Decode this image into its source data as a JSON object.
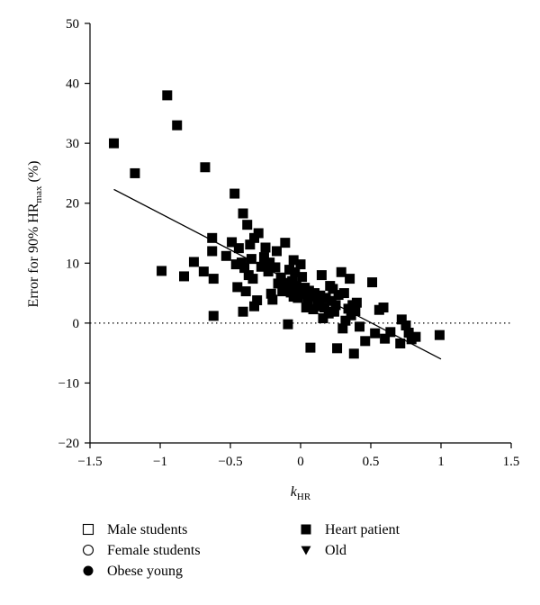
{
  "chart_data": {
    "type": "scatter",
    "xlabel": "k",
    "xlabel_sub": "HR",
    "ylabel_prefix": "Error for 90% HR",
    "ylabel_sub": "max",
    "ylabel_suffix": " (%)",
    "xlim": [
      -1.5,
      1.5
    ],
    "ylim": [
      -20,
      50
    ],
    "x_ticks": [
      -1.5,
      -1,
      -0.5,
      0,
      0.5,
      1,
      1.5
    ],
    "x_tick_labels": [
      "−1.5",
      "−1",
      "−0.5",
      "0",
      "0.5",
      "1",
      "1.5"
    ],
    "y_ticks": [
      -20,
      -10,
      0,
      10,
      20,
      30,
      40,
      50
    ],
    "y_tick_labels": [
      "−20",
      "−10",
      "0",
      "10",
      "20",
      "30",
      "40",
      "50"
    ],
    "grid": false,
    "reference_line": {
      "y": 0,
      "style": "dotted"
    },
    "trend_line": {
      "x": [
        -1.33,
        1.0
      ],
      "y": [
        22.3,
        -6.0
      ]
    },
    "legend": {
      "placement": "bottom",
      "entries": [
        {
          "label": "Male students",
          "marker": "square-open"
        },
        {
          "label": "Female students",
          "marker": "circle-open"
        },
        {
          "label": "Obese young",
          "marker": "circle-filled"
        },
        {
          "label": "Heart patient",
          "marker": "square-filled"
        },
        {
          "label": "Old",
          "marker": "triangle-down-filled"
        }
      ]
    },
    "series": [
      {
        "name": "Heart patient",
        "marker": "square-filled",
        "points": [
          [
            -1.33,
            30
          ],
          [
            -1.18,
            25
          ],
          [
            -0.95,
            38
          ],
          [
            -0.88,
            33
          ],
          [
            -0.68,
            26
          ],
          [
            -0.99,
            8.7
          ],
          [
            -0.83,
            7.8
          ],
          [
            -0.76,
            10.2
          ],
          [
            -0.69,
            8.6
          ],
          [
            -0.63,
            14.2
          ],
          [
            -0.63,
            12.0
          ],
          [
            -0.62,
            7.4
          ],
          [
            -0.62,
            1.2
          ],
          [
            -0.53,
            11.2
          ],
          [
            -0.49,
            13.5
          ],
          [
            -0.47,
            21.6
          ],
          [
            -0.46,
            9.8
          ],
          [
            -0.45,
            6.0
          ],
          [
            -0.44,
            12.5
          ],
          [
            -0.42,
            10.1
          ],
          [
            -0.41,
            18.3
          ],
          [
            -0.41,
            1.9
          ],
          [
            -0.4,
            9.2
          ],
          [
            -0.39,
            5.3
          ],
          [
            -0.38,
            16.4
          ],
          [
            -0.37,
            8.0
          ],
          [
            -0.36,
            13.1
          ],
          [
            -0.35,
            10.7
          ],
          [
            -0.34,
            7.4
          ],
          [
            -0.33,
            14.2
          ],
          [
            -0.33,
            2.8
          ],
          [
            -0.31,
            3.8
          ],
          [
            -0.3,
            15.0
          ],
          [
            -0.28,
            9.4
          ],
          [
            -0.26,
            11.0
          ],
          [
            -0.25,
            12.6
          ],
          [
            -0.23,
            8.6
          ],
          [
            -0.22,
            10.1
          ],
          [
            -0.21,
            4.9
          ],
          [
            -0.2,
            3.9
          ],
          [
            -0.18,
            9.3
          ],
          [
            -0.17,
            12.0
          ],
          [
            -0.16,
            6.6
          ],
          [
            -0.14,
            7.6
          ],
          [
            -0.13,
            5.3
          ],
          [
            -0.11,
            13.4
          ],
          [
            -0.1,
            6.7
          ],
          [
            -0.09,
            5.6
          ],
          [
            -0.09,
            -0.2
          ],
          [
            -0.08,
            8.9
          ],
          [
            -0.07,
            5.1
          ],
          [
            -0.06,
            7.0
          ],
          [
            -0.05,
            10.5
          ],
          [
            -0.05,
            4.4
          ],
          [
            -0.04,
            8.5
          ],
          [
            -0.03,
            6.2
          ],
          [
            -0.02,
            4.2
          ],
          [
            -0.01,
            5.0
          ],
          [
            0.0,
            9.8
          ],
          [
            0.01,
            7.7
          ],
          [
            0.02,
            4.8
          ],
          [
            0.03,
            5.9
          ],
          [
            0.04,
            2.6
          ],
          [
            0.05,
            3.6
          ],
          [
            0.06,
            5.4
          ],
          [
            0.07,
            -4.1
          ],
          [
            0.08,
            4.4
          ],
          [
            0.09,
            2.3
          ],
          [
            0.1,
            5.0
          ],
          [
            0.12,
            3.8
          ],
          [
            0.13,
            2.8
          ],
          [
            0.14,
            4.6
          ],
          [
            0.15,
            8.0
          ],
          [
            0.16,
            0.8
          ],
          [
            0.17,
            2.6
          ],
          [
            0.18,
            4.2
          ],
          [
            0.2,
            1.6
          ],
          [
            0.21,
            6.2
          ],
          [
            0.22,
            3.7
          ],
          [
            0.23,
            5.7
          ],
          [
            0.24,
            1.9
          ],
          [
            0.25,
            3.0
          ],
          [
            0.26,
            -4.2
          ],
          [
            0.27,
            4.7
          ],
          [
            0.29,
            8.5
          ],
          [
            0.3,
            -0.9
          ],
          [
            0.31,
            5.0
          ],
          [
            0.32,
            0.4
          ],
          [
            0.34,
            2.4
          ],
          [
            0.35,
            7.4
          ],
          [
            0.36,
            1.3
          ],
          [
            0.37,
            3.0
          ],
          [
            0.38,
            -5.1
          ],
          [
            0.39,
            2.0
          ],
          [
            0.4,
            3.4
          ],
          [
            0.42,
            -0.6
          ],
          [
            0.46,
            -3.0
          ],
          [
            0.51,
            6.8
          ],
          [
            0.53,
            -1.7
          ],
          [
            0.56,
            2.2
          ],
          [
            0.59,
            2.6
          ],
          [
            0.6,
            -2.6
          ],
          [
            0.64,
            -1.5
          ],
          [
            0.71,
            -3.4
          ],
          [
            0.72,
            0.6
          ],
          [
            0.75,
            -0.4
          ],
          [
            0.77,
            -1.6
          ],
          [
            0.79,
            -2.7
          ],
          [
            0.82,
            -2.3
          ],
          [
            0.99,
            -2.0
          ]
        ]
      }
    ]
  }
}
